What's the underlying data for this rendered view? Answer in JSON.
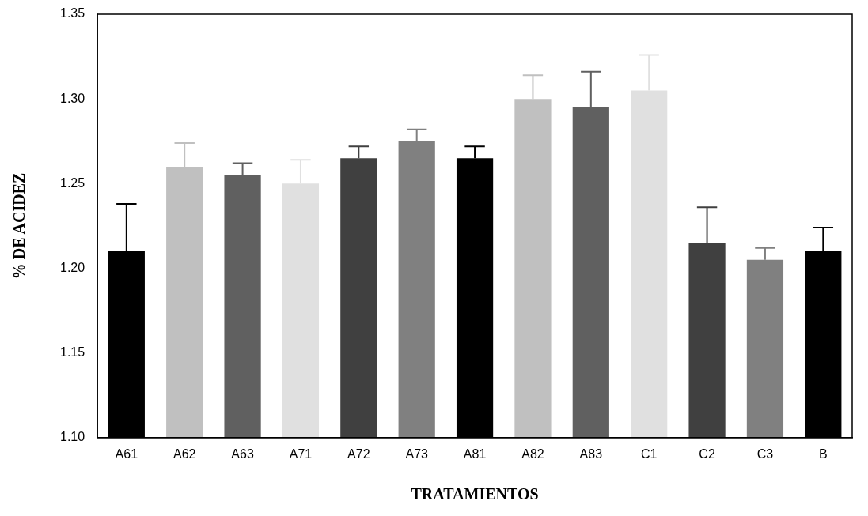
{
  "chart_data": {
    "type": "bar",
    "xlabel": "TRATAMIENTOS",
    "ylabel": "% DE ACIDEZ",
    "categories": [
      "A61",
      "A62",
      "A63",
      "A71",
      "A72",
      "A73",
      "A81",
      "A82",
      "A83",
      "C1",
      "C2",
      "C3",
      "B"
    ],
    "values": [
      1.21,
      1.26,
      1.255,
      1.25,
      1.265,
      1.275,
      1.265,
      1.3,
      1.295,
      1.305,
      1.215,
      1.205,
      1.21
    ],
    "errors": [
      [
        1.21,
        1.238
      ],
      [
        1.26,
        1.274
      ],
      [
        1.255,
        1.262
      ],
      [
        1.25,
        1.264
      ],
      [
        1.265,
        1.272
      ],
      [
        1.275,
        1.282
      ],
      [
        1.265,
        1.272
      ],
      [
        1.3,
        1.314
      ],
      [
        1.295,
        1.316
      ],
      [
        1.305,
        1.326
      ],
      [
        1.215,
        1.236
      ],
      [
        1.205,
        1.212
      ],
      [
        1.21,
        1.224
      ]
    ],
    "colors": [
      "#000000",
      "#c0c0c0",
      "#606060",
      "#e0e0e0",
      "#404040",
      "#808080",
      "#000000",
      "#c0c0c0",
      "#606060",
      "#e0e0e0",
      "#404040",
      "#808080",
      "#000000"
    ],
    "ylim": [
      1.1,
      1.35
    ],
    "yticks": [
      {
        "value": 1.1,
        "label": "1.10"
      },
      {
        "value": 1.15,
        "label": "1.15"
      },
      {
        "value": 1.2,
        "label": "1.20"
      },
      {
        "value": 1.25,
        "label": "1.25"
      },
      {
        "value": 1.3,
        "label": "1.30"
      },
      {
        "value": 1.35,
        "label": "1.35"
      }
    ],
    "grid": false,
    "legend": false
  }
}
